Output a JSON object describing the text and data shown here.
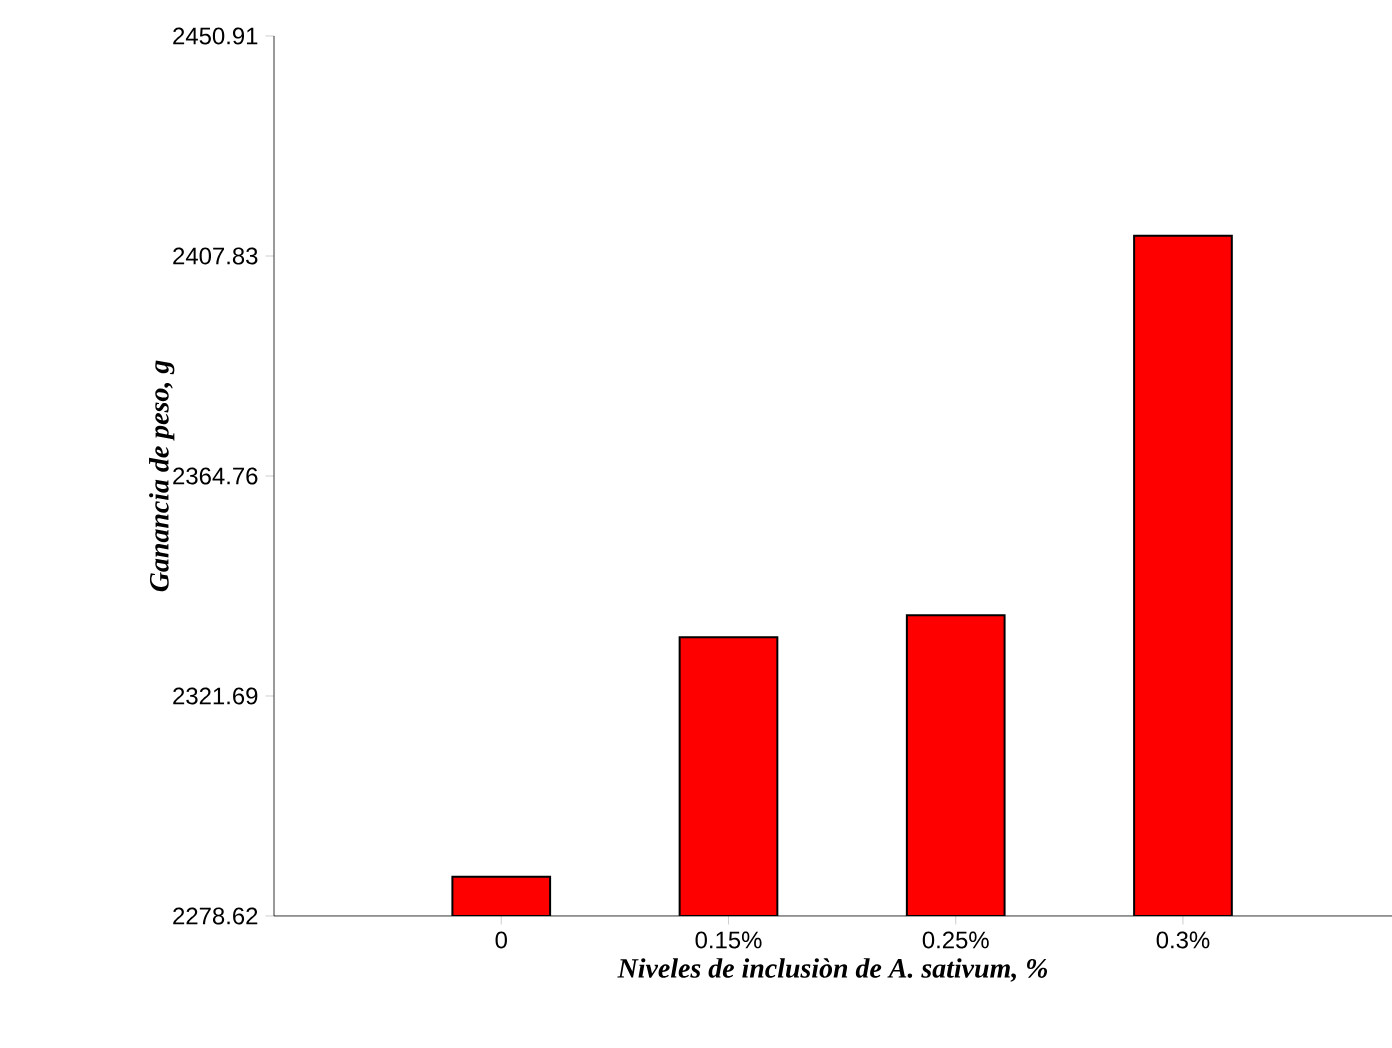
{
  "chart_data": {
    "type": "bar",
    "xlabel": "Niveles de inclusiòn de A. sativum, %",
    "ylabel": "Ganancia de peso, g",
    "categories": [
      "0",
      "0.15%",
      "0.25%",
      "0.3%"
    ],
    "values": [
      2286.3,
      2333.2,
      2337.5,
      2411.8
    ],
    "color": "#ff0000",
    "ylim": [
      2278.62,
      2450.91
    ],
    "yticks": [
      2278.62,
      2321.69,
      2364.76,
      2407.83,
      2450.91
    ],
    "grid": false
  }
}
